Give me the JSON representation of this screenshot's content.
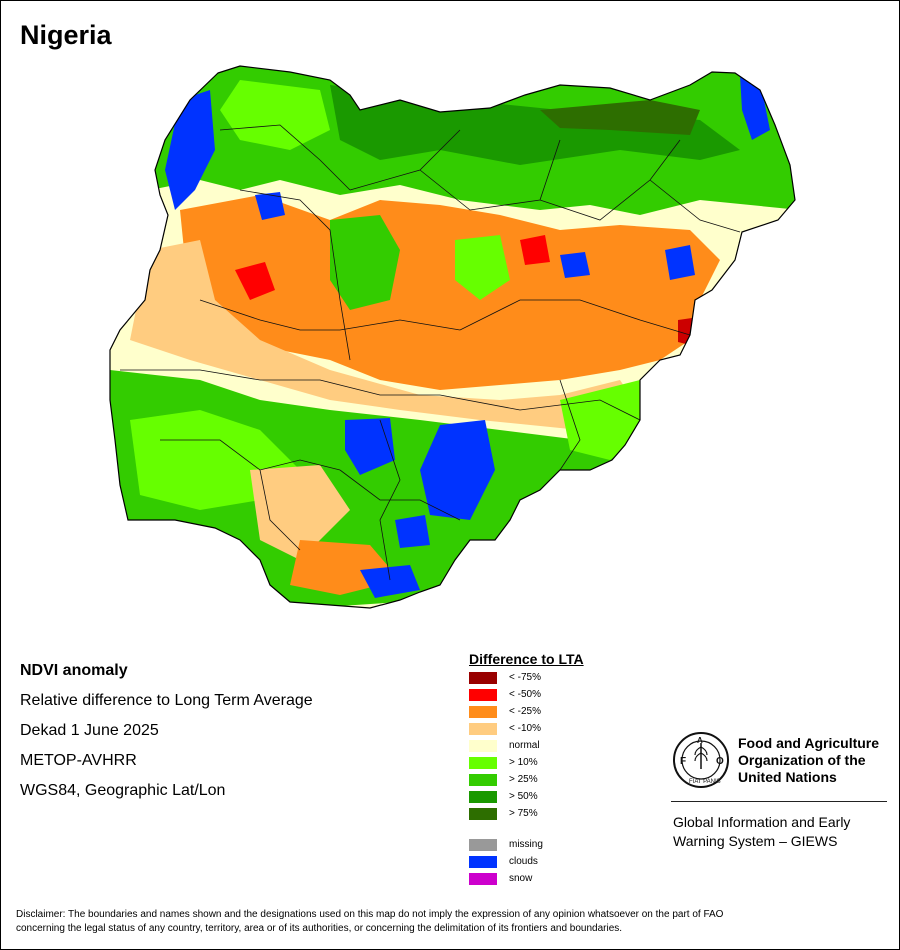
{
  "map_title": "Nigeria",
  "info": {
    "heading": "NDVI anomaly",
    "line1": "Relative difference to Long Term Average",
    "line2": "Dekad 1 June 2025",
    "line3": "METOP-AVHRR",
    "line4": "WGS84, Geographic Lat/Lon"
  },
  "legend": {
    "title": "Difference to LTA",
    "classes": [
      {
        "label": "< -75%",
        "color": "#990000"
      },
      {
        "label": "< -50%",
        "color": "#ff0000"
      },
      {
        "label": "< -25%",
        "color": "#ff8c1a"
      },
      {
        "label": "< -10%",
        "color": "#ffcc80"
      },
      {
        "label": "normal",
        "color": "#ffffcc"
      },
      {
        "label": "> 10%",
        "color": "#66ff00"
      },
      {
        "label": "> 25%",
        "color": "#33cc00"
      },
      {
        "label": "> 50%",
        "color": "#1a9900"
      },
      {
        "label": "> 75%",
        "color": "#2d6e00"
      }
    ],
    "special": [
      {
        "label": "missing",
        "color": "#999999"
      },
      {
        "label": "clouds",
        "color": "#0033ff"
      },
      {
        "label": "snow",
        "color": "#cc00cc"
      }
    ]
  },
  "fao": {
    "logo_text": "FAO",
    "logo_motto": "FIAT PANIS",
    "name_line1": "Food and Agriculture",
    "name_line2": "Organization of the",
    "name_line3": "United Nations"
  },
  "giews": {
    "line1": "Global Information and Early",
    "line2": "Warning System – GIEWS"
  },
  "disclaimer_line1": "Disclaimer: The boundaries and names shown and the designations used on this map do not imply the expression of any opinion whatsoever on the part of FAO",
  "disclaimer_line2": "concerning the legal status of any country, territory, area or of its authorities, or concerning the delimitation of its frontiers and boundaries."
}
